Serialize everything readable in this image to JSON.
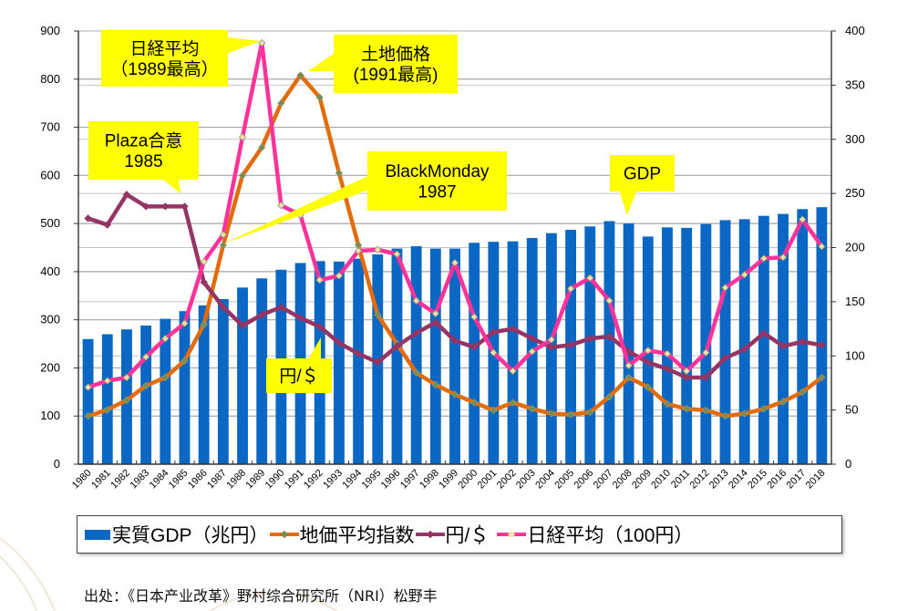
{
  "chart_data": {
    "type": "bar+line",
    "title": "",
    "categories": [
      "1980",
      "1981",
      "1982",
      "1983",
      "1984",
      "1985",
      "1986",
      "1987",
      "1988",
      "1989",
      "1990",
      "1991",
      "1992",
      "1993",
      "1994",
      "1995",
      "1996",
      "1997",
      "1998",
      "1999",
      "2000",
      "2001",
      "2002",
      "2003",
      "2004",
      "2005",
      "2006",
      "2007",
      "2008",
      "2009",
      "2010",
      "2011",
      "2012",
      "2013",
      "2014",
      "2015",
      "2016",
      "2017",
      "2018"
    ],
    "left_axis": {
      "ylim": [
        0,
        900
      ],
      "ticks": [
        "0",
        "100",
        "200",
        "300",
        "400",
        "500",
        "600",
        "700",
        "800",
        "900"
      ]
    },
    "right_axis": {
      "ylim": [
        0,
        400
      ],
      "ticks": [
        "0",
        "50",
        "100",
        "150",
        "200",
        "250",
        "300",
        "350",
        "400"
      ]
    },
    "grid": true,
    "series": [
      {
        "name": "実質GDP（兆円）",
        "type": "bar",
        "axis": "left",
        "color": "#0a68c4",
        "values": [
          260,
          270,
          280,
          288,
          302,
          318,
          330,
          343,
          367,
          386,
          404,
          418,
          422,
          421,
          427,
          436,
          448,
          453,
          448,
          448,
          460,
          462,
          463,
          470,
          480,
          487,
          494,
          505,
          500,
          473,
          492,
          491,
          499,
          507,
          509,
          516,
          520,
          530,
          534
        ]
      },
      {
        "name": "地価平均指数",
        "type": "line",
        "axis": "left",
        "color": "#e36c0a",
        "values": [
          100,
          113,
          133,
          163,
          180,
          215,
          290,
          455,
          600,
          658,
          750,
          808,
          762,
          605,
          455,
          310,
          250,
          190,
          165,
          145,
          128,
          112,
          128,
          115,
          105,
          103,
          108,
          140,
          180,
          160,
          125,
          115,
          112,
          100,
          105,
          115,
          130,
          150,
          180
        ]
      },
      {
        "name": "円/$",
        "type": "line",
        "axis": "right",
        "color": "#943565",
        "values": [
          227,
          221,
          249,
          238,
          238,
          238,
          168,
          145,
          128,
          138,
          145,
          135,
          127,
          112,
          102,
          94,
          109,
          121,
          131,
          114,
          108,
          122,
          125,
          116,
          108,
          110,
          116,
          118,
          104,
          94,
          88,
          80,
          80,
          98,
          106,
          121,
          109,
          113,
          110
        ]
      },
      {
        "name": "日経平均（100円）",
        "type": "line",
        "axis": "right",
        "color": "#ff3399",
        "values": [
          71,
          77,
          80,
          99,
          116,
          130,
          187,
          212,
          302,
          389,
          239,
          230,
          170,
          174,
          197,
          198,
          194,
          151,
          139,
          186,
          136,
          103,
          86,
          104,
          115,
          162,
          172,
          151,
          91,
          105,
          102,
          86,
          103,
          163,
          175,
          190,
          191,
          226,
          201
        ]
      }
    ],
    "legend": "bottom",
    "annotations": [
      {
        "id": "nikkei-peak",
        "lines": [
          "日経平均",
          "（1989最高）"
        ]
      },
      {
        "id": "land-peak",
        "lines": [
          "土地価格",
          "(1991最高)"
        ]
      },
      {
        "id": "plaza",
        "lines": [
          "Plaza合意",
          "1985"
        ]
      },
      {
        "id": "black-monday",
        "lines": [
          "BlackMonday",
          "1987"
        ]
      },
      {
        "id": "gdp",
        "lines": [
          "GDP"
        ]
      },
      {
        "id": "yen-dollar",
        "lines": [
          "円/＄"
        ]
      }
    ]
  },
  "legend_labels": {
    "gdp": "実質GDP（兆円）",
    "land": "地価平均指数",
    "yen": "円/＄",
    "nikkei": "日経平均（100円）"
  },
  "source": "出处：《日本产业改革》野村综合研究所（NRI）松野丰"
}
